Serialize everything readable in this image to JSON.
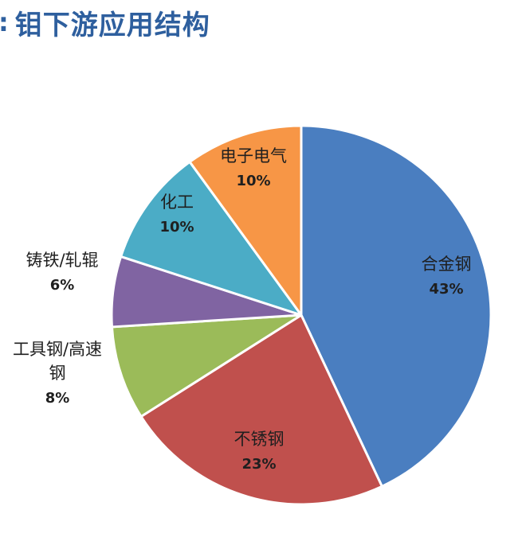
{
  "header": {
    "title_prefix": ":",
    "title": "钼下游应用结构"
  },
  "chart_data": {
    "type": "pie",
    "title": "钼下游应用结构",
    "start_angle_deg": 0,
    "direction": "clockwise",
    "slices": [
      {
        "name": "合金钢",
        "value": 43,
        "label_lines": [
          "合金钢"
        ],
        "value_label": "43%",
        "color": "#4a7ec0"
      },
      {
        "name": "不锈钢",
        "value": 23,
        "label_lines": [
          "不锈钢"
        ],
        "value_label": "23%",
        "color": "#c0504d"
      },
      {
        "name": "工具钢/高速钢",
        "value": 8,
        "label_lines": [
          "工具钢/高速",
          "钢"
        ],
        "value_label": "8%",
        "color": "#9bbb59"
      },
      {
        "name": "铸铁/轧辊",
        "value": 6,
        "label_lines": [
          "铸铁/轧辊"
        ],
        "value_label": "6%",
        "color": "#8064a2"
      },
      {
        "name": "化工",
        "value": 10,
        "label_lines": [
          "化工"
        ],
        "value_label": "10%",
        "color": "#4bacc6"
      },
      {
        "name": "电子电气",
        "value": 10,
        "label_lines": [
          "电子电气"
        ],
        "value_label": "10%",
        "color": "#f79646"
      }
    ]
  }
}
